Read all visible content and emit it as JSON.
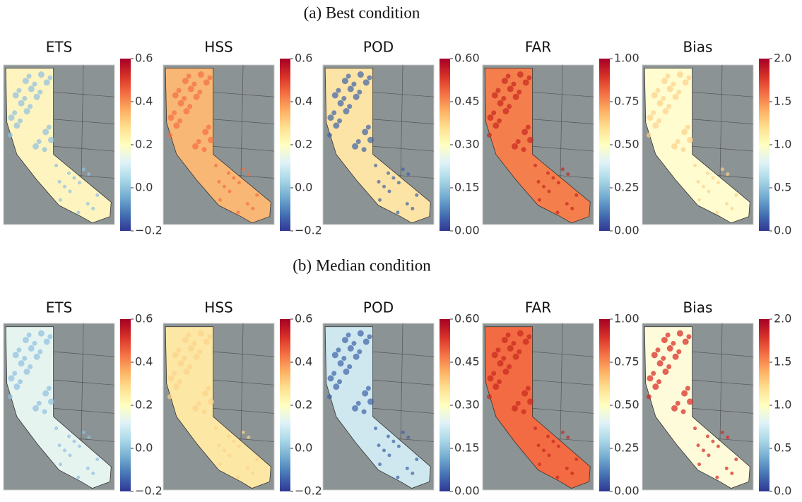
{
  "rows": [
    {
      "caption": "(a) Best condition",
      "panels": [
        {
          "title": "ETS",
          "colorbar": {
            "lim": [
              -0.2,
              0.6
            ],
            "ticks": [
              {
                "value": -0.2,
                "label": "−0.2"
              },
              {
                "value": 0.0,
                "label": "0.0"
              },
              0.2,
              0.4,
              0.6
            ]
          }
        },
        {
          "title": "HSS",
          "colorbar": {
            "lim": [
              -0.2,
              0.6
            ],
            "ticks": [
              {
                "value": -0.2,
                "label": "−0.2"
              },
              {
                "value": 0.0,
                "label": "0.0"
              },
              0.2,
              0.4,
              0.6
            ]
          }
        },
        {
          "title": "POD",
          "colorbar": {
            "lim": [
              0,
              0.6
            ],
            "ticks": [
              {
                "value": 0,
                "label": "0.00"
              },
              0.15,
              {
                "value": 0.3,
                "label": "0.30"
              },
              0.45,
              {
                "value": 0.6,
                "label": "0.60"
              }
            ]
          }
        },
        {
          "title": "FAR",
          "colorbar": {
            "lim": [
              0,
              1
            ],
            "ticks": [
              {
                "value": 0,
                "label": "0.00"
              },
              0.25,
              {
                "value": 0.5,
                "label": "0.50"
              },
              0.75,
              {
                "value": 1,
                "label": "1.00"
              }
            ]
          }
        },
        {
          "title": "Bias",
          "colorbar": {
            "lim": [
              0,
              2
            ],
            "ticks": [
              {
                "value": 0,
                "label": "0.0"
              },
              0.5,
              {
                "value": 1,
                "label": "1.0"
              },
              1.5,
              {
                "value": 2,
                "label": "2.0"
              }
            ]
          }
        }
      ]
    },
    {
      "caption": "(b) Median condition",
      "panels": [
        {
          "title": "ETS",
          "colorbar": {
            "lim": [
              -0.2,
              0.6
            ],
            "ticks": [
              {
                "value": -0.2,
                "label": "−0.2"
              },
              {
                "value": 0.0,
                "label": "0.0"
              },
              0.2,
              0.4,
              0.6
            ]
          }
        },
        {
          "title": "HSS",
          "colorbar": {
            "lim": [
              -0.2,
              0.6
            ],
            "ticks": [
              {
                "value": -0.2,
                "label": "−0.2"
              },
              {
                "value": 0.0,
                "label": "0.0"
              },
              0.2,
              0.4,
              0.6
            ]
          }
        },
        {
          "title": "POD",
          "colorbar": {
            "lim": [
              0,
              0.6
            ],
            "ticks": [
              {
                "value": 0,
                "label": "0.00"
              },
              0.15,
              {
                "value": 0.3,
                "label": "0.30"
              },
              0.45,
              {
                "value": 0.6,
                "label": "0.60"
              }
            ]
          }
        },
        {
          "title": "FAR",
          "colorbar": {
            "lim": [
              0,
              1
            ],
            "ticks": [
              {
                "value": 0,
                "label": "0.00"
              },
              0.25,
              {
                "value": 0.5,
                "label": "0.50"
              },
              0.75,
              {
                "value": 1,
                "label": "1.00"
              }
            ]
          }
        },
        {
          "title": "Bias",
          "colorbar": {
            "lim": [
              0,
              2
            ],
            "ticks": [
              {
                "value": 0,
                "label": "0.0"
              },
              0.5,
              {
                "value": 1,
                "label": "1.0"
              },
              1.5,
              {
                "value": 2,
                "label": "2.0"
              }
            ]
          }
        }
      ]
    }
  ]
}
